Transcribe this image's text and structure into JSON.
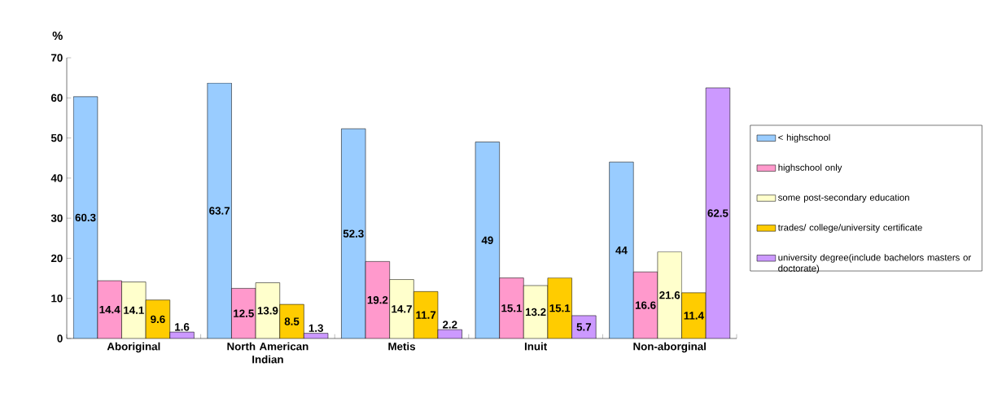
{
  "chart_data": {
    "type": "bar",
    "ylabel": "%",
    "categories": [
      "Aboriginal",
      "North American Indian",
      "Metis",
      "Inuit",
      "Non-aborginal"
    ],
    "series": [
      {
        "name": "< highschool",
        "color": "#99ccff",
        "values": [
          60.3,
          63.7,
          52.3,
          49,
          44
        ]
      },
      {
        "name": "highschool only",
        "color": "#ff99cc",
        "values": [
          14.4,
          12.5,
          19.2,
          15.1,
          16.6
        ]
      },
      {
        "name": "some post-secondary education",
        "color": "#ffffcc",
        "values": [
          14.1,
          13.9,
          14.7,
          13.2,
          21.6
        ]
      },
      {
        "name": "trades/ college/university certificate",
        "color": "#ffcc00",
        "values": [
          9.6,
          8.5,
          11.7,
          15.1,
          11.4
        ]
      },
      {
        "name": "university degree(include bachelors masters or doctorate)",
        "color": "#cc99ff",
        "values": [
          1.6,
          1.3,
          2.2,
          5.7,
          62.5
        ]
      }
    ],
    "ylim": [
      0,
      70
    ],
    "yticks": [
      0,
      10,
      20,
      30,
      40,
      50,
      60,
      70
    ],
    "data_labels": true,
    "legend": "right",
    "grid": false
  }
}
